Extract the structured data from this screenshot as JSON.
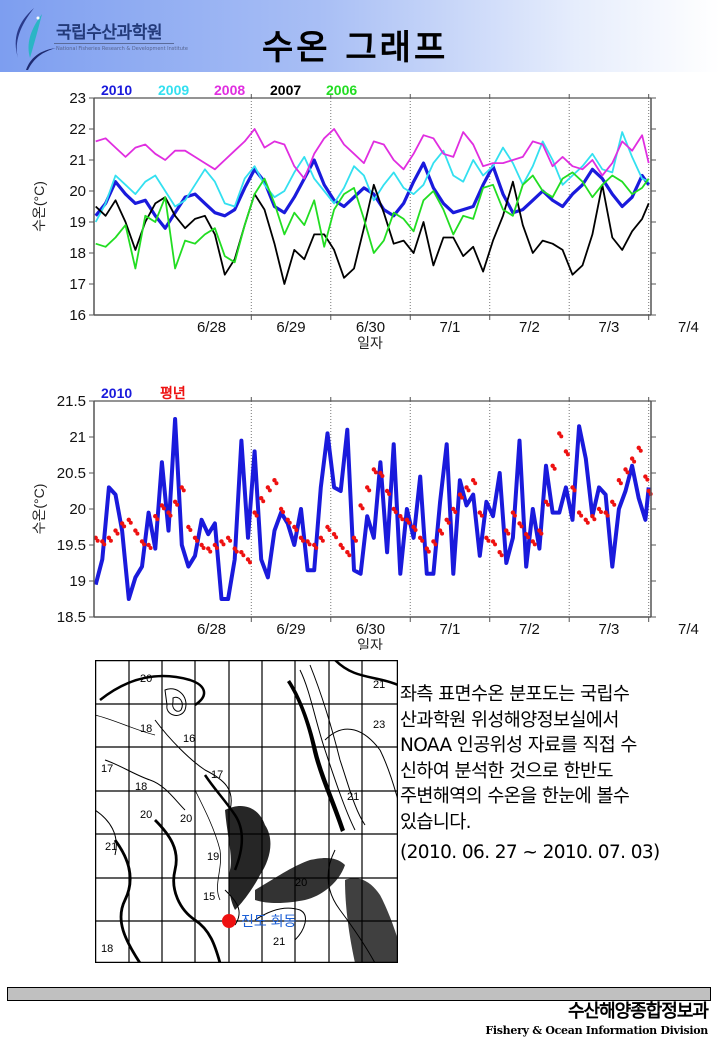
{
  "header": {
    "logo_name_kr": "국립수산과학원",
    "logo_name_en": "National Fisheries Research & Development Institute",
    "title": "수온 그래프"
  },
  "colors": {
    "y2010": "#1a1adc",
    "y2009": "#33e0f0",
    "y2008": "#e02ee0",
    "y2007": "#000000",
    "y2006": "#22dd22",
    "normal": "#ee1111",
    "header_blue": "#7d9ef0"
  },
  "chart_data": [
    {
      "type": "line",
      "title": "",
      "xlabel": "일자",
      "ylabel": "수온(°C)",
      "ylim": [
        16,
        23
      ],
      "yticks": [
        "16",
        "17",
        "18",
        "19",
        "20",
        "21",
        "22",
        "23"
      ],
      "x_unit": "hours from 6/28 00:00",
      "xlim": [
        -23.5,
        144.7
      ],
      "xtick_labels": [
        "6/28",
        "6/29",
        "6/30",
        "7/1",
        "7/2",
        "7/3",
        "7/4"
      ],
      "grid": "vertical dotted at day boundaries",
      "legend": "top-left inline",
      "x": [
        -23,
        -20,
        -17,
        -14,
        -11,
        -8,
        -5,
        -2,
        1,
        4,
        7,
        10,
        13,
        16,
        19,
        22,
        25,
        28,
        31,
        34,
        37,
        40,
        43,
        46,
        49,
        52,
        55,
        58,
        61,
        64,
        67,
        70,
        73,
        76,
        79,
        82,
        85,
        88,
        91,
        94,
        97,
        100,
        103,
        106,
        109,
        112,
        115,
        118,
        121,
        124,
        127,
        130,
        133,
        136,
        139,
        142,
        144
      ],
      "series": [
        {
          "name": "2010",
          "color_key": "y2010",
          "values": [
            19.2,
            19.6,
            20.3,
            19.9,
            19.6,
            19.7,
            19.2,
            18.8,
            19.3,
            19.8,
            19.9,
            19.6,
            19.3,
            19.2,
            19.4,
            20.1,
            20.7,
            20.3,
            19.5,
            19.3,
            19.8,
            20.4,
            21.0,
            20.2,
            19.7,
            19.5,
            19.8,
            20.1,
            19.9,
            19.4,
            19.2,
            19.6,
            20.3,
            20.9,
            20.1,
            19.6,
            19.3,
            19.4,
            19.5,
            20.2,
            20.8,
            19.9,
            19.3,
            19.4,
            19.7,
            20.0,
            19.7,
            19.5,
            19.9,
            20.2,
            20.7,
            20.4,
            19.9,
            19.5,
            19.8,
            20.5,
            20.2
          ]
        },
        {
          "name": "2009",
          "color_key": "y2009",
          "values": [
            19.0,
            19.6,
            20.5,
            20.2,
            19.9,
            20.3,
            20.5,
            20.0,
            19.5,
            19.7,
            20.2,
            20.7,
            20.3,
            19.6,
            19.5,
            20.4,
            20.8,
            20.2,
            19.8,
            20.0,
            20.6,
            21.1,
            20.4,
            20.0,
            19.6,
            20.1,
            20.8,
            20.5,
            19.7,
            20.2,
            20.6,
            20.1,
            19.9,
            20.2,
            20.9,
            21.3,
            20.5,
            20.3,
            21.0,
            20.5,
            20.8,
            21.4,
            20.9,
            20.2,
            20.8,
            21.6,
            21.0,
            20.2,
            20.5,
            20.8,
            21.2,
            20.7,
            20.6,
            21.9,
            21.1,
            20.4,
            20.3
          ]
        },
        {
          "name": "2008",
          "color_key": "y2008",
          "values": [
            21.6,
            21.7,
            21.4,
            21.1,
            21.4,
            21.5,
            21.2,
            21.0,
            21.3,
            21.3,
            21.1,
            20.9,
            20.7,
            21.0,
            21.3,
            21.6,
            22.0,
            21.4,
            21.6,
            21.5,
            20.8,
            20.4,
            21.2,
            21.7,
            22.0,
            21.5,
            21.2,
            20.9,
            21.6,
            21.5,
            21.0,
            20.7,
            21.2,
            21.8,
            21.7,
            21.2,
            21.1,
            21.9,
            21.5,
            20.8,
            20.9,
            20.9,
            21.0,
            21.1,
            21.6,
            21.5,
            20.8,
            21.1,
            20.8,
            20.7,
            21.0,
            20.5,
            20.9,
            21.6,
            21.3,
            21.8,
            20.9
          ]
        },
        {
          "name": "2007",
          "color_key": "y2007",
          "values": [
            19.5,
            19.2,
            19.7,
            19.0,
            18.1,
            19.0,
            19.6,
            19.8,
            19.2,
            18.8,
            19.1,
            19.2,
            18.6,
            17.3,
            17.8,
            18.9,
            19.9,
            19.4,
            18.3,
            17.0,
            18.1,
            17.8,
            18.6,
            18.6,
            18.1,
            17.2,
            17.5,
            18.8,
            20.2,
            19.3,
            18.3,
            18.4,
            18.0,
            19.0,
            17.6,
            18.5,
            18.5,
            17.9,
            18.2,
            17.4,
            18.4,
            19.2,
            20.3,
            18.9,
            18.0,
            18.4,
            18.3,
            18.1,
            17.3,
            17.6,
            18.6,
            20.2,
            18.5,
            18.1,
            18.7,
            19.1,
            19.6
          ]
        },
        {
          "name": "2006",
          "color_key": "y2006",
          "values": [
            18.3,
            18.2,
            18.5,
            18.9,
            17.5,
            19.2,
            19.0,
            19.8,
            17.5,
            18.4,
            18.3,
            18.6,
            18.8,
            17.9,
            17.7,
            18.9,
            19.9,
            20.4,
            19.6,
            18.6,
            19.3,
            18.9,
            19.7,
            18.2,
            19.4,
            19.9,
            20.1,
            19.1,
            18.0,
            18.4,
            19.3,
            19.1,
            18.7,
            19.7,
            20.0,
            19.4,
            18.6,
            19.2,
            19.1,
            20.1,
            20.2,
            19.4,
            19.2,
            20.2,
            20.5,
            20.0,
            19.8,
            20.4,
            20.6,
            20.3,
            19.8,
            20.2,
            20.5,
            20.3,
            19.9,
            20.1,
            20.4
          ]
        }
      ]
    },
    {
      "type": "line",
      "title": "",
      "xlabel": "일자",
      "ylabel": "수온(°C)",
      "ylim": [
        18.5,
        21.5
      ],
      "yticks": [
        "18.5",
        "19",
        "19.5",
        "20",
        "20.5",
        "21",
        "21.5"
      ],
      "x_unit": "hours from 6/28 00:00",
      "xlim": [
        -23.5,
        144.7
      ],
      "xtick_labels": [
        "6/28",
        "6/29",
        "6/30",
        "7/1",
        "7/2",
        "7/3",
        "7/4"
      ],
      "grid": "vertical dotted at day boundaries",
      "legend": "top-left inline",
      "x": [
        -23,
        -21,
        -19,
        -17,
        -15,
        -13,
        -11,
        -9,
        -7,
        -5,
        -3,
        -1,
        1,
        3,
        5,
        7,
        9,
        11,
        13,
        15,
        17,
        19,
        21,
        23,
        25,
        27,
        29,
        31,
        33,
        35,
        37,
        39,
        41,
        43,
        45,
        47,
        49,
        51,
        53,
        55,
        57,
        59,
        61,
        63,
        65,
        67,
        69,
        71,
        73,
        75,
        77,
        79,
        81,
        83,
        85,
        87,
        89,
        91,
        93,
        95,
        97,
        99,
        101,
        103,
        105,
        107,
        109,
        111,
        113,
        115,
        117,
        119,
        121,
        123,
        125,
        127,
        129,
        131,
        133,
        135,
        137,
        139,
        141,
        143,
        144
      ],
      "series": [
        {
          "name": "2010",
          "color_key": "y2010",
          "style": "line",
          "values": [
            18.95,
            19.3,
            20.3,
            20.2,
            19.7,
            18.75,
            19.05,
            19.2,
            19.95,
            19.45,
            20.65,
            19.7,
            21.25,
            19.5,
            19.2,
            19.35,
            19.85,
            19.65,
            19.8,
            18.75,
            18.75,
            19.3,
            20.95,
            19.6,
            20.8,
            19.3,
            19.05,
            19.7,
            19.95,
            19.8,
            19.5,
            20.0,
            19.15,
            19.15,
            20.3,
            21.05,
            20.3,
            20.25,
            21.1,
            19.15,
            19.1,
            19.9,
            19.6,
            20.65,
            19.4,
            20.9,
            19.1,
            20.0,
            19.6,
            20.45,
            19.1,
            19.1,
            20.1,
            20.9,
            19.1,
            20.4,
            20.05,
            20.2,
            19.35,
            20.1,
            19.9,
            20.5,
            19.25,
            19.6,
            20.95,
            19.2,
            20.0,
            19.45,
            20.6,
            19.95,
            19.95,
            20.3,
            19.85,
            21.15,
            20.7,
            19.9,
            20.3,
            20.2,
            19.2,
            20.0,
            20.25,
            20.6,
            20.15,
            19.85,
            20.3
          ]
        },
        {
          "name": "평년",
          "color_key": "normal",
          "style": "dots",
          "values": [
            19.6,
            19.55,
            19.6,
            19.7,
            19.8,
            19.85,
            19.7,
            19.55,
            19.5,
            19.9,
            20.05,
            19.95,
            20.1,
            20.3,
            19.75,
            19.6,
            19.5,
            19.45,
            19.5,
            19.55,
            19.6,
            19.45,
            19.4,
            19.3,
            19.95,
            20.15,
            20.3,
            20.4,
            20.0,
            19.85,
            19.75,
            19.6,
            19.55,
            19.5,
            19.6,
            19.75,
            19.65,
            19.5,
            19.4,
            19.6,
            20.05,
            20.3,
            20.55,
            20.5,
            20.25,
            20.0,
            19.9,
            19.85,
            19.75,
            19.6,
            19.45,
            19.55,
            19.7,
            19.85,
            20.0,
            20.2,
            20.3,
            20.4,
            19.95,
            19.6,
            19.55,
            19.4,
            19.7,
            19.95,
            19.8,
            19.65,
            19.55,
            19.7,
            20.1,
            20.6,
            21.05,
            20.8,
            20.3,
            19.95,
            19.85,
            19.9,
            20.0,
            19.95,
            20.1,
            20.4,
            20.55,
            20.7,
            20.85,
            20.45,
            20.25
          ]
        }
      ]
    }
  ],
  "legend_labels_top": [
    "2010",
    "2009",
    "2008",
    "2007",
    "2006"
  ],
  "legend_labels_bottom": [
    "2010",
    "평년"
  ],
  "map": {
    "contour_labels": [
      "20",
      "18",
      "16",
      "17",
      "18",
      "17",
      "20",
      "20",
      "21",
      "19",
      "15",
      "21",
      "18",
      "21",
      "23",
      "20",
      "21"
    ],
    "station_label": "진도 회동"
  },
  "description": {
    "lines": [
      "좌측 표면수온 분포도는 국립수",
      "산과학원 위성해양정보실에서",
      "NOAA 인공위성 자료를 직접 수",
      "신하여 분석한 것으로  한반도",
      "주변해역의 수온을 한눈에 볼수",
      "있습니다."
    ],
    "period": "(2010. 06. 27 ~ 2010. 07. 03)"
  },
  "footer": {
    "division_kr": "수산해양종합정보과",
    "division_en": "Fishery & Ocean Information Division"
  }
}
